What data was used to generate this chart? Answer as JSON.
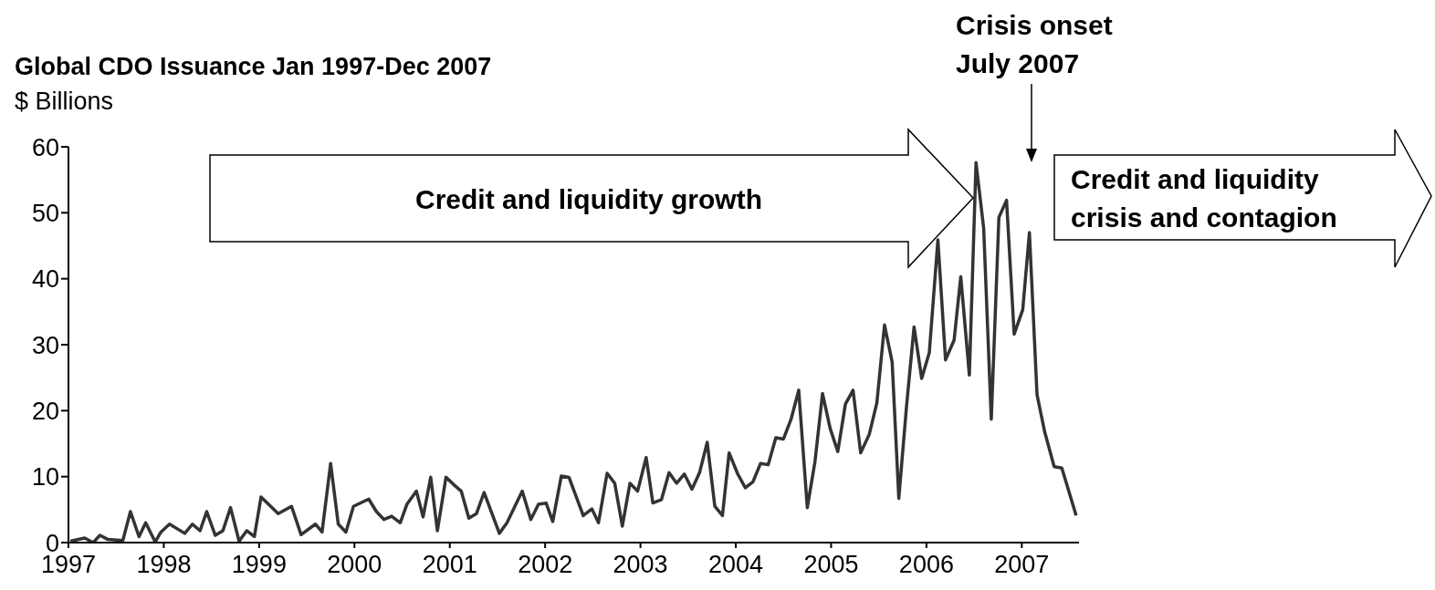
{
  "chart_data": {
    "type": "line",
    "title": "Global CDO Issuance Jan 1997-Dec 2007",
    "subtitle": "$ Billions",
    "annotations": [
      "Credit and liquidity growth",
      "Credit and liquidity crisis and contagion",
      "Crisis onset\nJuly 2007"
    ],
    "x": [
      1997.02,
      1997.17,
      1997.26,
      1997.33,
      1997.41,
      1997.57,
      1997.65,
      1997.74,
      1997.81,
      1997.91,
      1997.97,
      1998.06,
      1998.22,
      1998.3,
      1998.38,
      1998.45,
      1998.54,
      1998.62,
      1998.7,
      1998.79,
      1998.87,
      1998.95,
      1999.02,
      1999.2,
      1999.34,
      1999.44,
      1999.59,
      1999.66,
      1999.75,
      1999.83,
      1999.91,
      1999.99,
      2000.15,
      2000.23,
      2000.31,
      2000.39,
      2000.48,
      2000.55,
      2000.65,
      2000.72,
      2000.8,
      2000.87,
      2000.96,
      2001.04,
      2001.12,
      2001.2,
      2001.28,
      2001.36,
      2001.52,
      2001.6,
      2001.76,
      2001.85,
      2001.93,
      2002.01,
      2002.08,
      2002.17,
      2002.25,
      2002.4,
      2002.49,
      2002.56,
      2002.65,
      2002.73,
      2002.81,
      2002.89,
      2002.97,
      2003.06,
      2003.13,
      2003.22,
      2003.3,
      2003.38,
      2003.46,
      2003.54,
      2003.62,
      2003.7,
      2003.78,
      2003.86,
      2003.93,
      2004.02,
      2004.1,
      2004.18,
      2004.26,
      2004.34,
      2004.42,
      2004.5,
      2004.58,
      2004.66,
      2004.75,
      2004.83,
      2004.91,
      2004.99,
      2005.07,
      2005.15,
      2005.23,
      2005.31,
      2005.4,
      2005.48,
      2005.56,
      2005.64,
      2005.71,
      2005.79,
      2005.87,
      2005.95,
      2006.03,
      2006.12,
      2006.2,
      2006.29,
      2006.36,
      2006.45,
      2006.52,
      2006.6,
      2006.68,
      2006.76,
      2006.84,
      2006.92,
      2007.01,
      2007.08,
      2007.16,
      2007.24,
      2007.34,
      2007.42,
      2007.57
    ],
    "series": [
      {
        "color": "#333333",
        "values": [
          0.2,
          0.7,
          0,
          1.1,
          0.5,
          0.3,
          4.7,
          0.9,
          3.0,
          0.1,
          1.6,
          2.8,
          1.4,
          2.8,
          1.8,
          4.7,
          1.1,
          1.8,
          5.3,
          0.2,
          1.8,
          0.9,
          6.9,
          4.4,
          5.5,
          1.2,
          2.8,
          1.6,
          12.0,
          2.8,
          1.6,
          5.5,
          6.6,
          4.7,
          3.5,
          4.0,
          3.0,
          5.8,
          7.8,
          3.9,
          9.9,
          1.8,
          9.9,
          8.8,
          7.8,
          3.7,
          4.4,
          7.6,
          1.4,
          3.0,
          7.8,
          3.5,
          5.8,
          6.0,
          3.2,
          10.1,
          9.9,
          4.1,
          5.1,
          3.0,
          10.5,
          9.0,
          2.5,
          9.0,
          7.8,
          12.9,
          6.0,
          6.5,
          10.6,
          9.0,
          10.4,
          8.1,
          10.6,
          15.2,
          5.5,
          4.1,
          13.6,
          10.4,
          8.3,
          9.2,
          12.0,
          11.8,
          15.9,
          15.7,
          18.7,
          23.1,
          5.3,
          12.2,
          22.6,
          17.3,
          13.8,
          21.0,
          23.1,
          13.6,
          16.4,
          21.2,
          33.0,
          27.4,
          6.7,
          20.5,
          32.7,
          24.9,
          28.8,
          45.9,
          27.7,
          30.7,
          40.3,
          25.4,
          57.6,
          47.7,
          18.7,
          49.3,
          51.9,
          31.6,
          35.3,
          47.0,
          22.4,
          16.8,
          11.5,
          11.3,
          4.1
        ]
      }
    ],
    "xlim": [
      1997,
      2007.6
    ],
    "xticks": [
      1997,
      1998,
      1999,
      2000,
      2001,
      2002,
      2003,
      2004,
      2005,
      2006,
      2007
    ],
    "ylim": [
      0,
      60
    ],
    "yticks": [
      0,
      10,
      20,
      30,
      40,
      50,
      60
    ],
    "grid": false,
    "line_style": "solid"
  }
}
